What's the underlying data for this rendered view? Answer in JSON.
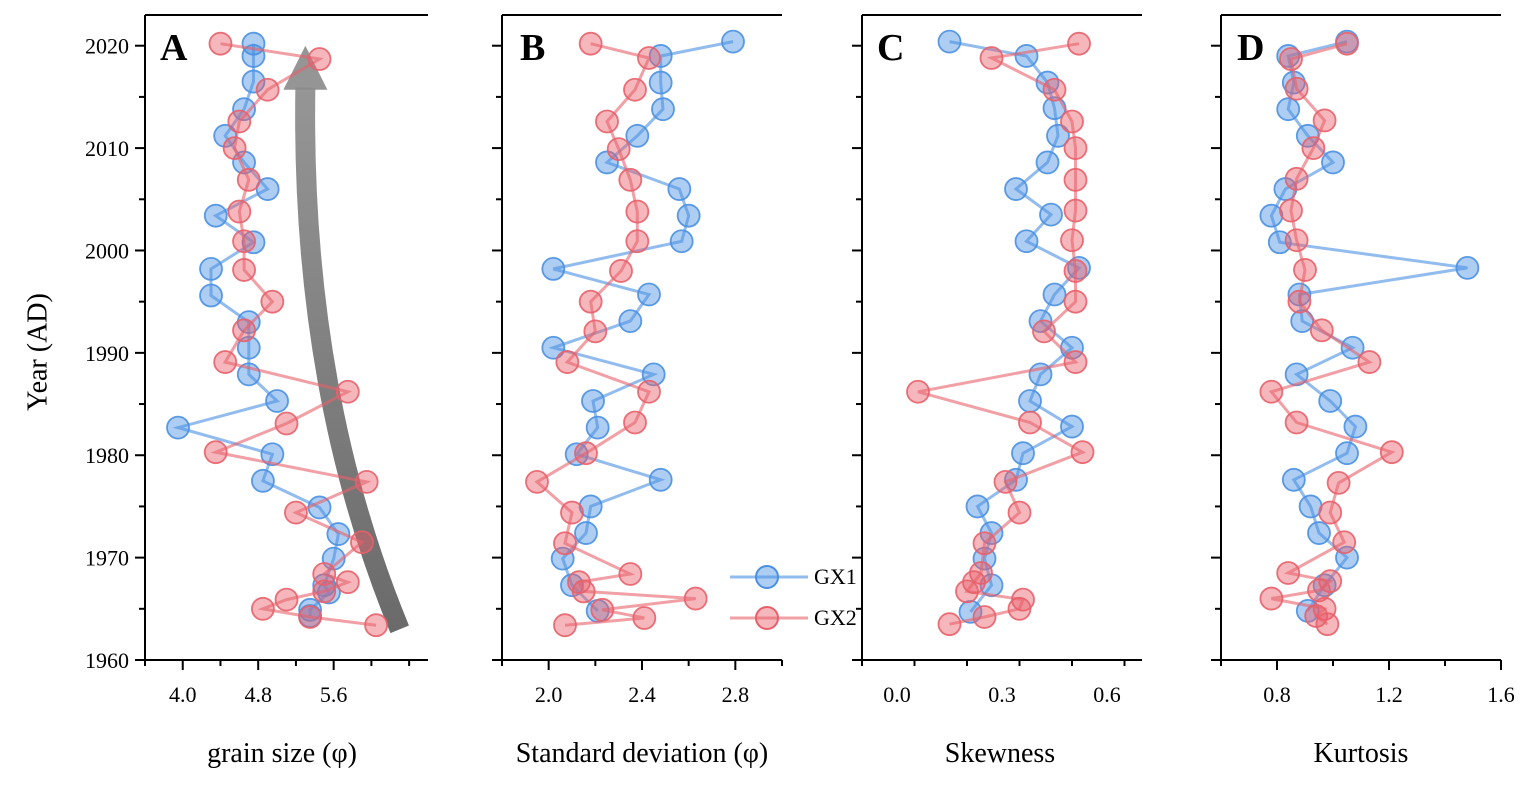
{
  "chart_data": {
    "type": "line",
    "shared_y": {
      "label": "Year (AD)",
      "ylim": [
        1960,
        2023
      ],
      "ticks": [
        1960,
        1970,
        1980,
        1990,
        2000,
        2010,
        2020
      ],
      "tick_labels": [
        "1960",
        "1970",
        "1980",
        "1990",
        "2000",
        "2010",
        "2020"
      ]
    },
    "legend": {
      "position": "bottom-right of panel B",
      "entries": [
        {
          "name": "GX1",
          "color": "#4a90e2"
        },
        {
          "name": "GX2",
          "color": "#e8606a"
        }
      ]
    },
    "panels": [
      {
        "id": "A",
        "letter": "A",
        "xlabel": "grain size (φ)",
        "xlim": [
          3.6,
          6.6
        ],
        "ticks": [
          4.0,
          4.8,
          5.6
        ],
        "tick_labels": [
          "4.0",
          "4.8",
          "5.6"
        ],
        "arrow": {
          "direction": "up",
          "meaning": "trend",
          "from": [
            6.3,
            1963
          ],
          "to": [
            5.3,
            2020
          ]
        },
        "series": [
          {
            "name": "GX1",
            "year": [
              2020.2,
              2019,
              2016.5,
              2013.8,
              2011.2,
              2008.6,
              2006,
              2003.4,
              2000.8,
              1998.2,
              1995.6,
              1993,
              1990.5,
              1987.9,
              1985.3,
              1982.7,
              1980.1,
              1977.5,
              1974.9,
              1972.3,
              1969.9,
              1967.3,
              1966.6,
              1964.9,
              1964.3
            ],
            "x": [
              4.75,
              4.75,
              4.75,
              4.65,
              4.45,
              4.65,
              4.9,
              4.35,
              4.75,
              4.3,
              4.3,
              4.7,
              4.7,
              4.7,
              5.0,
              3.95,
              4.95,
              4.85,
              5.45,
              5.65,
              5.6,
              5.5,
              5.55,
              5.35,
              5.35
            ]
          },
          {
            "name": "GX2",
            "year": [
              2020.2,
              2018.7,
              2015.7,
              2012.6,
              2010.0,
              2006.9,
              2003.8,
              2000.9,
              1998.1,
              1995.0,
              1992.2,
              1989.1,
              1986.2,
              1983.1,
              1980.3,
              1977.4,
              1974.4,
              1971.5,
              1968.4,
              1967.6,
              1966.7,
              1965.9,
              1965.0,
              1964.2,
              1963.4
            ],
            "x": [
              4.4,
              5.45,
              4.9,
              4.6,
              4.55,
              4.7,
              4.6,
              4.65,
              4.65,
              4.95,
              4.65,
              4.45,
              5.75,
              5.1,
              4.35,
              5.95,
              5.2,
              5.9,
              5.5,
              5.75,
              5.5,
              5.1,
              4.85,
              5.35,
              6.05
            ]
          }
        ]
      },
      {
        "id": "B",
        "letter": "B",
        "xlabel": "Standard deviation (φ)",
        "xlim": [
          1.8,
          3.0
        ],
        "ticks": [
          2.0,
          2.4,
          2.8
        ],
        "tick_labels": [
          "2.0",
          "2.4",
          "2.8"
        ],
        "series": [
          {
            "name": "GX1",
            "year": [
              2020.4,
              2019.0,
              2016.4,
              2013.8,
              2011.2,
              2008.6,
              2006.0,
              2003.4,
              2000.9,
              1998.2,
              1995.7,
              1993.1,
              1990.5,
              1987.9,
              1985.3,
              1982.7,
              1980.1,
              1977.6,
              1975.0,
              1972.4,
              1969.9,
              1967.3,
              1964.8
            ],
            "x": [
              2.79,
              2.48,
              2.48,
              2.49,
              2.38,
              2.25,
              2.56,
              2.6,
              2.57,
              2.02,
              2.43,
              2.35,
              2.02,
              2.45,
              2.19,
              2.21,
              2.12,
              2.48,
              2.18,
              2.16,
              2.06,
              2.1,
              2.21
            ]
          },
          {
            "name": "GX2",
            "year": [
              2020.2,
              2018.8,
              2015.7,
              2012.6,
              2009.9,
              2006.9,
              2003.8,
              2000.9,
              1998.0,
              1995.0,
              1992.1,
              1989.1,
              1986.2,
              1983.2,
              1980.2,
              1977.4,
              1974.4,
              1971.4,
              1968.4,
              1967.6,
              1966.7,
              1966.0,
              1964.9,
              1964.1,
              1963.4
            ],
            "x": [
              2.18,
              2.43,
              2.37,
              2.25,
              2.3,
              2.35,
              2.38,
              2.38,
              2.31,
              2.18,
              2.2,
              2.08,
              2.43,
              2.37,
              2.16,
              1.95,
              2.1,
              2.07,
              2.35,
              2.13,
              2.15,
              2.63,
              2.23,
              2.41,
              2.07
            ]
          }
        ]
      },
      {
        "id": "C",
        "letter": "C",
        "xlabel": "Skewness",
        "xlim": [
          -0.1,
          0.7
        ],
        "ticks": [
          0.0,
          0.3,
          0.6
        ],
        "tick_labels": [
          "0.0",
          "0.3",
          "0.6"
        ],
        "series": [
          {
            "name": "GX1",
            "year": [
              2020.4,
              2019.0,
              2016.4,
              2013.9,
              2011.2,
              2008.6,
              2006.0,
              2003.5,
              2000.9,
              1998.3,
              1995.7,
              1993.1,
              1990.5,
              1987.9,
              1985.3,
              1982.8,
              1980.2,
              1977.6,
              1975.0,
              1972.4,
              1969.9,
              1967.3,
              1964.7
            ],
            "x": [
              0.15,
              0.37,
              0.43,
              0.45,
              0.46,
              0.43,
              0.34,
              0.44,
              0.37,
              0.52,
              0.45,
              0.41,
              0.5,
              0.41,
              0.38,
              0.5,
              0.36,
              0.34,
              0.23,
              0.27,
              0.25,
              0.27,
              0.21
            ]
          },
          {
            "name": "GX2",
            "year": [
              2020.2,
              2018.8,
              2015.7,
              2012.6,
              2010.0,
              2006.9,
              2003.9,
              2001.0,
              1998.0,
              1995.0,
              1992.1,
              1989.1,
              1986.2,
              1983.2,
              1980.3,
              1977.4,
              1974.4,
              1971.4,
              1968.5,
              1967.6,
              1966.7,
              1965.9,
              1965.0,
              1964.2,
              1963.5
            ],
            "x": [
              0.52,
              0.27,
              0.45,
              0.5,
              0.51,
              0.51,
              0.51,
              0.5,
              0.51,
              0.51,
              0.42,
              0.51,
              0.06,
              0.38,
              0.53,
              0.31,
              0.35,
              0.25,
              0.24,
              0.22,
              0.2,
              0.36,
              0.35,
              0.25,
              0.15
            ]
          }
        ]
      },
      {
        "id": "D",
        "letter": "D",
        "xlabel": "Kurtosis",
        "xlim": [
          0.6,
          1.6
        ],
        "ticks": [
          0.8,
          1.2,
          1.6
        ],
        "tick_labels": [
          "0.8",
          "1.2",
          "1.6"
        ],
        "series": [
          {
            "name": "GX1",
            "year": [
              2020.4,
              2019.0,
              2016.4,
              2013.8,
              2011.2,
              2008.6,
              2006.0,
              2003.4,
              2000.8,
              1998.3,
              1995.7,
              1993.1,
              1990.5,
              1987.9,
              1985.3,
              1982.8,
              1980.2,
              1977.6,
              1975.0,
              1972.4,
              1970.0,
              1967.3,
              1964.8
            ],
            "x": [
              1.05,
              0.84,
              0.86,
              0.84,
              0.91,
              1.0,
              0.83,
              0.78,
              0.81,
              1.48,
              0.88,
              0.89,
              1.07,
              0.87,
              0.99,
              1.08,
              1.05,
              0.86,
              0.92,
              0.95,
              1.05,
              0.97,
              0.91
            ]
          },
          {
            "name": "GX2",
            "year": [
              2020.2,
              2018.7,
              2015.8,
              2012.7,
              2010.0,
              2007.0,
              2003.9,
              2001.0,
              1998.1,
              1995.0,
              1992.2,
              1989.1,
              1986.2,
              1983.2,
              1980.3,
              1977.3,
              1974.4,
              1971.5,
              1968.5,
              1967.7,
              1966.8,
              1966.0,
              1965.0,
              1964.3,
              1963.5
            ],
            "x": [
              1.05,
              0.85,
              0.87,
              0.97,
              0.93,
              0.87,
              0.85,
              0.87,
              0.9,
              0.88,
              0.96,
              1.13,
              0.78,
              0.87,
              1.21,
              1.02,
              0.99,
              1.04,
              0.84,
              0.99,
              0.95,
              0.78,
              0.97,
              0.94,
              0.98
            ]
          }
        ]
      }
    ]
  }
}
